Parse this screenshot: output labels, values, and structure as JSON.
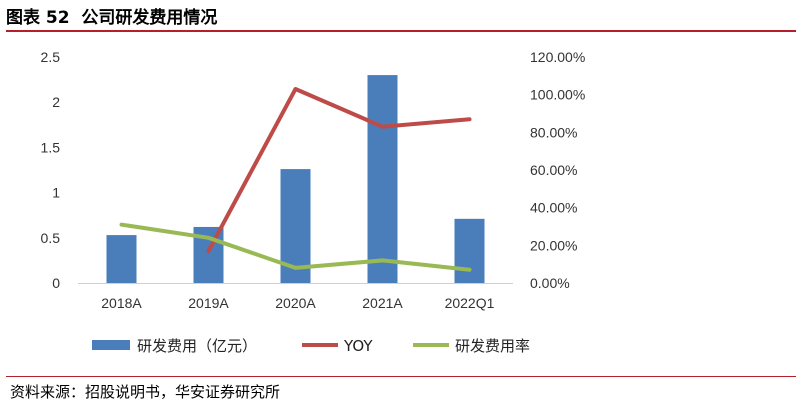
{
  "header": {
    "figure_label": "图表 52",
    "title": "公司研发费用情况"
  },
  "source": "资料来源：招股说明书，华安证券研究所",
  "chart_data": {
    "type": "bar",
    "categories": [
      "2018A",
      "2019A",
      "2020A",
      "2021A",
      "2022Q1"
    ],
    "series": [
      {
        "name": "研发费用（亿元）",
        "type": "bar",
        "axis": "left",
        "color": "#4a7ebb",
        "values": [
          0.53,
          0.62,
          1.26,
          2.3,
          0.71
        ]
      },
      {
        "name": "YOY",
        "type": "line",
        "axis": "right",
        "color": "#be4b48",
        "values": [
          null,
          0.17,
          1.03,
          0.83,
          0.87
        ]
      },
      {
        "name": "研发费用率",
        "type": "line",
        "axis": "right",
        "color": "#98b954",
        "values": [
          0.31,
          0.24,
          0.08,
          0.12,
          0.07
        ]
      }
    ],
    "left_axis": {
      "min": 0,
      "max": 2.5,
      "ticks": [
        "0",
        "0.5",
        "1",
        "1.5",
        "2",
        "2.5"
      ]
    },
    "right_axis": {
      "min": 0,
      "max": 1.2,
      "ticks": [
        "0.00%",
        "20.00%",
        "40.00%",
        "60.00%",
        "80.00%",
        "100.00%",
        "120.00%"
      ]
    },
    "legend_position": "bottom",
    "grid": false
  }
}
